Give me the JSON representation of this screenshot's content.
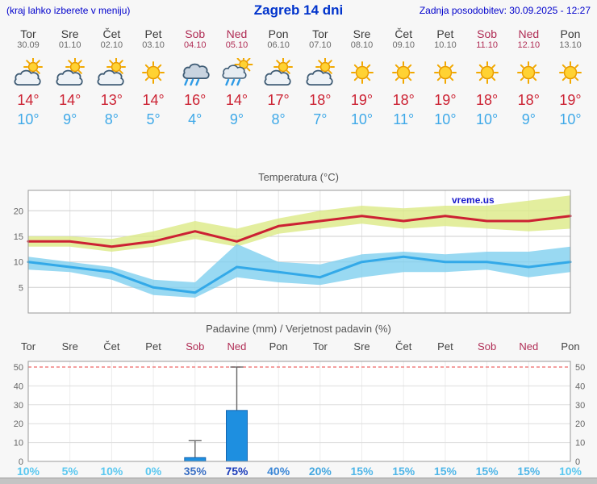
{
  "header": {
    "left_note": "(kraj lahko izberete v meniju)",
    "title": "Zagreb 14 dni",
    "updated": "Zadnja posodobitev: 30.09.2025 - 12:27"
  },
  "colors": {
    "tmax": "#cc2233",
    "tmin": "#3fa9e8",
    "weekend": "#b02d55",
    "header_blue": "#0000cc"
  },
  "days": [
    {
      "name": "Tor",
      "date": "30.09",
      "weekend": false,
      "icon": "sun-cloud",
      "tmax": "14°",
      "tmin": "10°"
    },
    {
      "name": "Sre",
      "date": "01.10",
      "weekend": false,
      "icon": "sun-cloud",
      "tmax": "14°",
      "tmin": "9°"
    },
    {
      "name": "Čet",
      "date": "02.10",
      "weekend": false,
      "icon": "sun-cloud",
      "tmax": "13°",
      "tmin": "8°"
    },
    {
      "name": "Pet",
      "date": "03.10",
      "weekend": false,
      "icon": "sunny",
      "tmax": "14°",
      "tmin": "5°"
    },
    {
      "name": "Sob",
      "date": "04.10",
      "weekend": true,
      "icon": "rain",
      "tmax": "16°",
      "tmin": "4°"
    },
    {
      "name": "Ned",
      "date": "05.10",
      "weekend": true,
      "icon": "sun-rain",
      "tmax": "14°",
      "tmin": "9°"
    },
    {
      "name": "Pon",
      "date": "06.10",
      "weekend": false,
      "icon": "sun-cloud",
      "tmax": "17°",
      "tmin": "8°"
    },
    {
      "name": "Tor",
      "date": "07.10",
      "weekend": false,
      "icon": "sun-cloud",
      "tmax": "18°",
      "tmin": "7°"
    },
    {
      "name": "Sre",
      "date": "08.10",
      "weekend": false,
      "icon": "sunny",
      "tmax": "19°",
      "tmin": "10°"
    },
    {
      "name": "Čet",
      "date": "09.10",
      "weekend": false,
      "icon": "sunny",
      "tmax": "18°",
      "tmin": "11°"
    },
    {
      "name": "Pet",
      "date": "10.10",
      "weekend": false,
      "icon": "sunny",
      "tmax": "19°",
      "tmin": "10°"
    },
    {
      "name": "Sob",
      "date": "11.10",
      "weekend": true,
      "icon": "sunny",
      "tmax": "18°",
      "tmin": "10°"
    },
    {
      "name": "Ned",
      "date": "12.10",
      "weekend": true,
      "icon": "sunny",
      "tmax": "18°",
      "tmin": "9°"
    },
    {
      "name": "Pon",
      "date": "13.10",
      "weekend": false,
      "icon": "sunny",
      "tmax": "19°",
      "tmin": "10°"
    }
  ],
  "chart_data": [
    {
      "type": "line",
      "title": "Temperatura (°C)",
      "watermark": "vreme.us",
      "categories": [
        "Tor 30.09",
        "Sre 01.10",
        "Čet 02.10",
        "Pet 03.10",
        "Sob 04.10",
        "Ned 05.10",
        "Pon 06.10",
        "Tor 07.10",
        "Sre 08.10",
        "Čet 09.10",
        "Pet 10.10",
        "Sob 11.10",
        "Ned 12.10",
        "Pon 13.10"
      ],
      "series": [
        {
          "name": "max-temperature",
          "color": "#cc2133",
          "values": [
            14,
            14,
            13,
            14,
            16,
            14,
            17,
            18,
            19,
            18,
            19,
            18,
            18,
            19
          ]
        },
        {
          "name": "min-temperature",
          "color": "#33a9e8",
          "values": [
            10,
            9,
            8,
            5,
            4,
            9,
            8,
            7,
            10,
            11,
            10,
            10,
            9,
            10
          ]
        }
      ],
      "bands": [
        {
          "name": "max-range",
          "color": "#dcea86",
          "upper": [
            15,
            15,
            14.5,
            16,
            18,
            16.5,
            18.5,
            20,
            21,
            20.5,
            21,
            21,
            22,
            23
          ],
          "lower": [
            13,
            13,
            12,
            13,
            14.5,
            13,
            15.5,
            16.5,
            17.5,
            16.5,
            17,
            16.5,
            16,
            16.5
          ]
        },
        {
          "name": "min-range",
          "color": "#7fd0ef",
          "upper": [
            11,
            10,
            9,
            6.5,
            6,
            13.5,
            10,
            9.5,
            11.5,
            12,
            11.5,
            12,
            12,
            13
          ],
          "lower": [
            8.5,
            8,
            6.5,
            3.5,
            3,
            7,
            6,
            5.5,
            7,
            8,
            8,
            8.5,
            7,
            8
          ]
        }
      ],
      "ylim": [
        0,
        24
      ],
      "yticks": [
        5,
        10,
        15,
        20
      ],
      "grid": true,
      "legend": "none"
    },
    {
      "type": "bar",
      "title": "Padavine (mm) / Verjetnost padavin (%)",
      "categories": [
        "Tor",
        "Sre",
        "Čet",
        "Pet",
        "Sob",
        "Ned",
        "Pon",
        "Tor",
        "Sre",
        "Čet",
        "Pet",
        "Sob",
        "Ned",
        "Pon"
      ],
      "weekend_flags": [
        false,
        false,
        false,
        false,
        true,
        true,
        false,
        false,
        false,
        false,
        false,
        true,
        true,
        false
      ],
      "values": [
        0,
        0,
        0,
        0,
        2,
        27,
        0,
        0,
        0,
        0,
        0,
        0,
        0,
        0
      ],
      "whisker_max": [
        0,
        0,
        0,
        0,
        11,
        50,
        0,
        0,
        0,
        0,
        0,
        0,
        0,
        0
      ],
      "bar_color": "#1e8fe0",
      "threshold_line": {
        "value": 50,
        "color": "#f08080"
      },
      "ylim": [
        0,
        53
      ],
      "yticks": [
        0,
        10,
        20,
        30,
        40,
        50
      ],
      "probabilities": [
        {
          "label": "10%",
          "color": "#5bc8f0"
        },
        {
          "label": "5%",
          "color": "#5bc8f0"
        },
        {
          "label": "10%",
          "color": "#5bc8f0"
        },
        {
          "label": "0%",
          "color": "#5bc8f0"
        },
        {
          "label": "35%",
          "color": "#3a6fc4"
        },
        {
          "label": "75%",
          "color": "#1c3dbb"
        },
        {
          "label": "40%",
          "color": "#3a86d6"
        },
        {
          "label": "20%",
          "color": "#45a8e0"
        },
        {
          "label": "15%",
          "color": "#4fb6e8"
        },
        {
          "label": "15%",
          "color": "#4fb6e8"
        },
        {
          "label": "15%",
          "color": "#4fb6e8"
        },
        {
          "label": "15%",
          "color": "#4fb6e8"
        },
        {
          "label": "15%",
          "color": "#4fb6e8"
        },
        {
          "label": "10%",
          "color": "#5bc8f0"
        }
      ]
    }
  ]
}
